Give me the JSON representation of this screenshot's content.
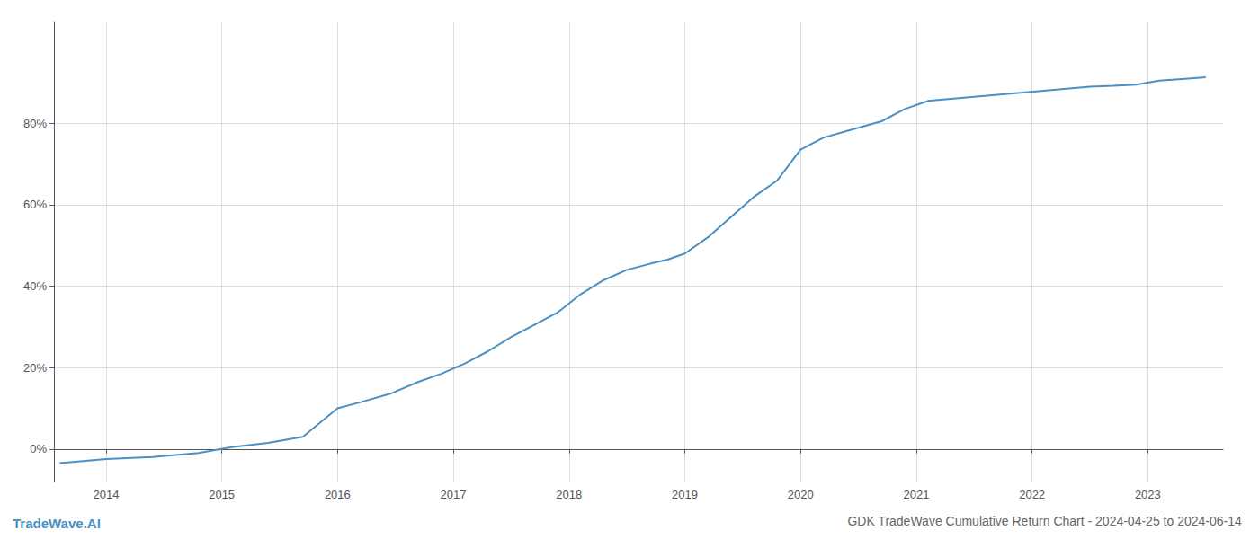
{
  "chart_data": {
    "type": "line",
    "title": "GDK TradeWave Cumulative Return Chart - 2024-04-25 to 2024-06-14",
    "annotations": [
      "TradeWave.AI"
    ],
    "x": [
      2013.6,
      2014.0,
      2014.4,
      2014.8,
      2015.1,
      2015.4,
      2015.7,
      2016.0,
      2016.2,
      2016.45,
      2016.7,
      2016.9,
      2017.1,
      2017.3,
      2017.5,
      2017.7,
      2017.9,
      2018.1,
      2018.3,
      2018.5,
      2018.7,
      2018.85,
      2019.0,
      2019.2,
      2019.4,
      2019.6,
      2019.8,
      2020.0,
      2020.2,
      2020.45,
      2020.7,
      2020.9,
      2021.1,
      2021.3,
      2021.5,
      2021.7,
      2021.9,
      2022.1,
      2022.3,
      2022.5,
      2022.7,
      2022.9,
      2023.1,
      2023.35,
      2023.5
    ],
    "values": [
      -3.5,
      -2.5,
      -2.0,
      -1.0,
      0.5,
      1.5,
      3.0,
      10.0,
      11.5,
      13.5,
      16.5,
      18.5,
      21.0,
      24.0,
      27.5,
      30.5,
      33.5,
      38.0,
      41.5,
      44.0,
      45.5,
      46.5,
      48.0,
      52.0,
      57.0,
      62.0,
      66.0,
      73.5,
      76.5,
      78.5,
      80.5,
      83.5,
      85.5,
      86.0,
      86.5,
      87.0,
      87.5,
      88.0,
      88.5,
      89.0,
      89.2,
      89.5,
      90.5,
      91.0,
      91.3
    ],
    "color": "#4a90c4",
    "xlim": [
      2013.55,
      2023.65
    ],
    "ylim": [
      -8,
      105
    ],
    "xticks": [
      2014,
      2015,
      2016,
      2017,
      2018,
      2019,
      2020,
      2021,
      2022,
      2023
    ],
    "yticks": [
      {
        "value": 0,
        "label": "0%"
      },
      {
        "value": 20,
        "label": "20%"
      },
      {
        "value": 40,
        "label": "40%"
      },
      {
        "value": 60,
        "label": "60%"
      },
      {
        "value": 80,
        "label": "80%"
      }
    ],
    "grid": true
  }
}
